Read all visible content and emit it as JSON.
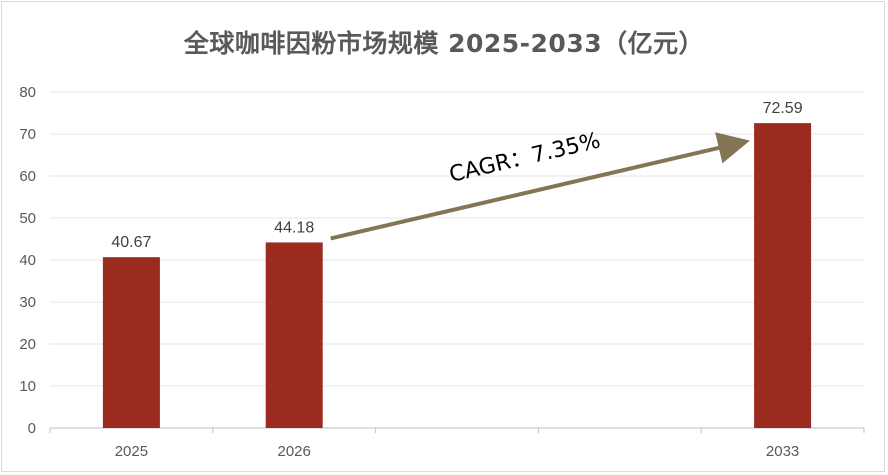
{
  "chart_data": {
    "type": "bar",
    "title": "全球咖啡因粉市场规模 2025-2033（亿元）",
    "xlabel": "",
    "ylabel": "",
    "categories": [
      "2025",
      "2026",
      "",
      "",
      "2033"
    ],
    "values": [
      40.67,
      44.18,
      null,
      null,
      72.59
    ],
    "data_labels": [
      "40.67",
      "44.18",
      "",
      "",
      "72.59"
    ],
    "ylim": [
      0,
      80
    ],
    "yticks": [
      0,
      10,
      20,
      30,
      40,
      50,
      60,
      70,
      80
    ],
    "grid": true,
    "legend": "none",
    "bar_color": "#9b2a1f",
    "annotation": {
      "text": "CAGR：7.35%",
      "from": {
        "category": "2026",
        "y": 44.18
      },
      "to": {
        "category": "2033",
        "y": 68
      },
      "arrow_color": "#847555"
    }
  }
}
